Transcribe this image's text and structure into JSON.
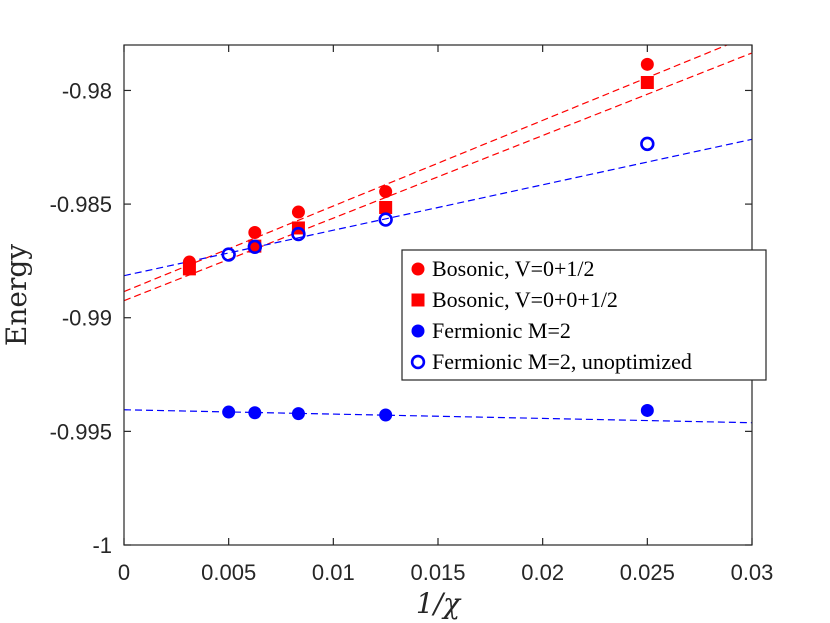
{
  "chart_data": {
    "type": "scatter",
    "title": "",
    "xlabel": "1/χ",
    "ylabel": "Energy",
    "xlim": [
      0,
      0.03
    ],
    "ylim": [
      -1,
      -0.978
    ],
    "xticks": [
      0,
      0.005,
      0.01,
      0.015,
      0.02,
      0.025,
      0.03
    ],
    "xtick_labels": [
      "0",
      "0.005",
      "0.01",
      "0.015",
      "0.02",
      "0.025",
      "0.03"
    ],
    "yticks": [
      -1,
      -0.995,
      -0.99,
      -0.985,
      -0.98
    ],
    "ytick_labels": [
      "-1",
      "-0.995",
      "-0.99",
      "-0.985",
      "-0.98"
    ],
    "grid": false,
    "legend_position": "middle-right",
    "series": [
      {
        "name": "Bosonic, V=0+1/2",
        "color": "#ff0000",
        "marker": "filled-circle",
        "x": [
          0.003125,
          0.00625,
          0.008333,
          0.0125,
          0.025
        ],
        "y": [
          -0.98755,
          -0.98625,
          -0.98535,
          -0.98445,
          -0.97885
        ],
        "fit": {
          "x": [
            0,
            0.03
          ],
          "y": [
            -0.98885,
            -0.97755
          ]
        }
      },
      {
        "name": "Bosonic, V=0+0+1/2",
        "color": "#ff0000",
        "marker": "filled-square",
        "x": [
          0.003125,
          0.00625,
          0.008333,
          0.0125,
          0.025
        ],
        "y": [
          -0.98785,
          -0.98685,
          -0.98605,
          -0.98515,
          -0.97965
        ],
        "fit": {
          "x": [
            0,
            0.03
          ],
          "y": [
            -0.98925,
            -0.97835
          ]
        }
      },
      {
        "name": "Fermionic M=2",
        "color": "#0000ff",
        "marker": "filled-circle",
        "x": [
          0.005,
          0.00625,
          0.008333,
          0.0125,
          0.025
        ],
        "y": [
          -0.99415,
          -0.99418,
          -0.99422,
          -0.99428,
          -0.99408
        ],
        "fit": {
          "x": [
            0,
            0.03
          ],
          "y": [
            -0.99405,
            -0.99462
          ]
        }
      },
      {
        "name": "Fermionic M=2, unoptimized",
        "color": "#0000ff",
        "marker": "open-circle",
        "x": [
          0.005,
          0.00625,
          0.008333,
          0.0125,
          0.025
        ],
        "y": [
          -0.98722,
          -0.98688,
          -0.98632,
          -0.98568,
          -0.98235
        ],
        "fit": {
          "x": [
            0,
            0.03
          ],
          "y": [
            -0.98815,
            -0.98215
          ]
        }
      }
    ]
  }
}
